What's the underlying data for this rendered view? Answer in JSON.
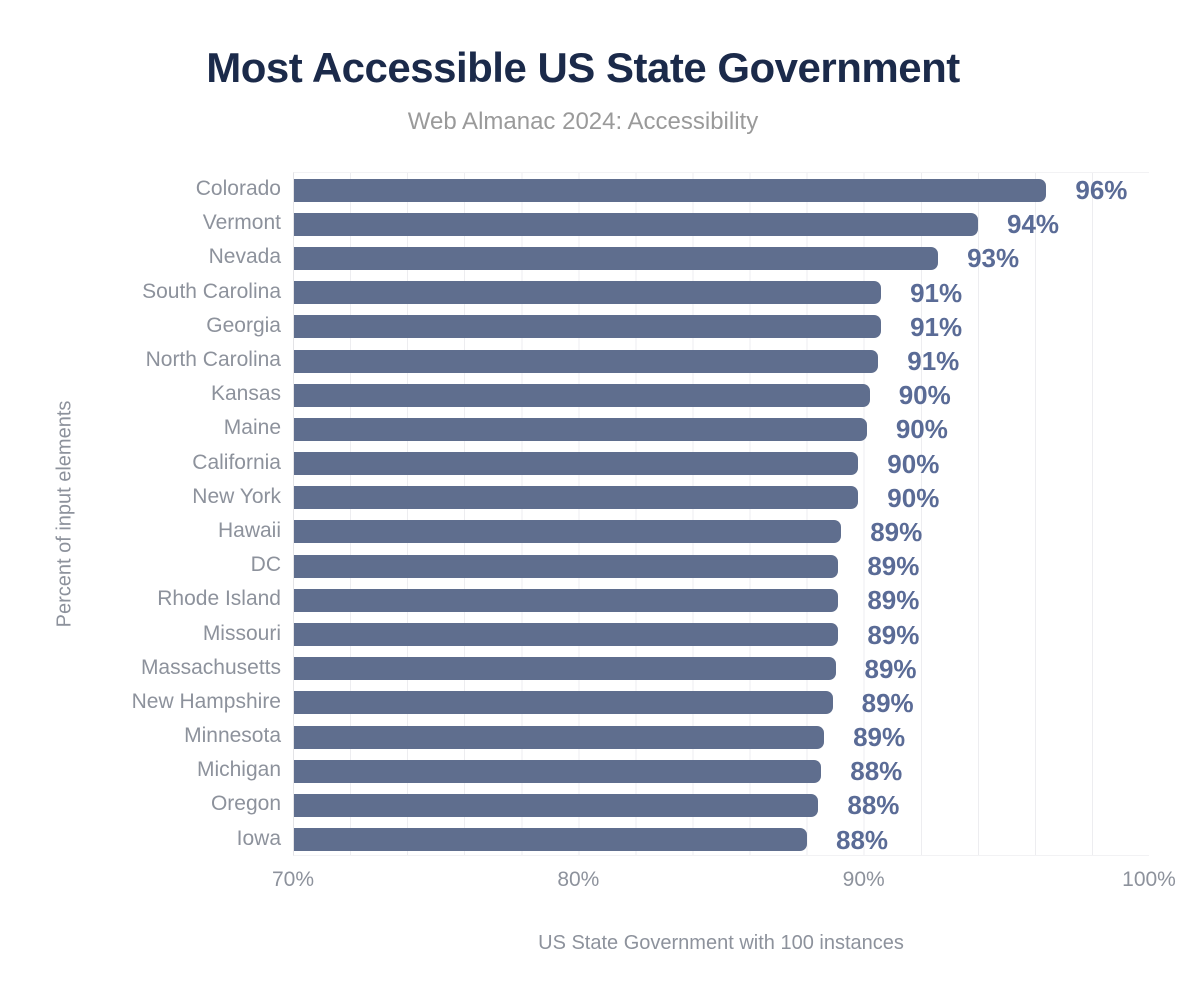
{
  "page": {
    "background": "#ffffff"
  },
  "chart_data": {
    "type": "bar",
    "orientation": "horizontal",
    "title": "Most Accessible US State Government",
    "subtitle": "Web Almanac 2024: Accessibility",
    "xlabel": "US State Government with 100 instances",
    "ylabel": "Percent of input elements",
    "xlim": [
      70,
      100
    ],
    "x_ticks": [
      "70%",
      "80%",
      "90%",
      "100%"
    ],
    "x_tick_values": [
      70,
      80,
      90,
      100
    ],
    "grid": "vertical minor gridlines every 2%, no horizontal gridlines",
    "legend": "none",
    "categories": [
      "Colorado",
      "Vermont",
      "Nevada",
      "South Carolina",
      "Georgia",
      "North Carolina",
      "Kansas",
      "Maine",
      "California",
      "New York",
      "Hawaii",
      "DC",
      "Rhode Island",
      "Missouri",
      "Massachusetts",
      "New Hampshire",
      "Minnesota",
      "Michigan",
      "Oregon",
      "Iowa"
    ],
    "values": [
      96,
      94,
      93,
      91,
      91,
      91,
      90,
      90,
      90,
      90,
      89,
      89,
      89,
      89,
      89,
      89,
      89,
      88,
      88,
      88
    ],
    "value_labels": [
      "96%",
      "94%",
      "93%",
      "91%",
      "91%",
      "91%",
      "90%",
      "90%",
      "90%",
      "90%",
      "89%",
      "89%",
      "89%",
      "89%",
      "89%",
      "89%",
      "89%",
      "88%",
      "88%",
      "88%"
    ],
    "bar_values_precise": [
      96.4,
      94.0,
      92.6,
      90.6,
      90.6,
      90.5,
      90.2,
      90.1,
      89.8,
      89.8,
      89.2,
      89.1,
      89.1,
      89.1,
      89.0,
      88.9,
      88.6,
      88.5,
      88.4,
      88.0
    ],
    "colors": {
      "bar": "#5f6e8e",
      "value_label": "#5a6b96",
      "title": "#1b2a4a",
      "subtitle": "#9a9a9a",
      "axis_text": "#8d929c",
      "gridline": "#ededf0"
    }
  }
}
